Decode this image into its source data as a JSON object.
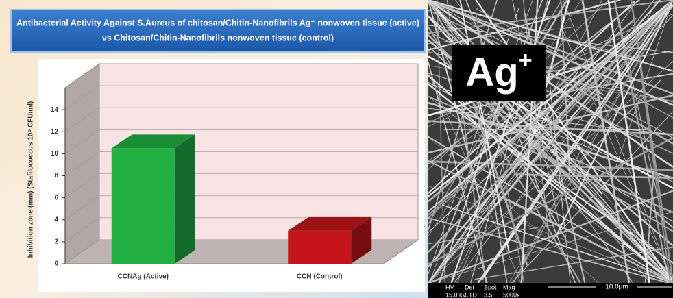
{
  "chart_data": {
    "type": "bar3d",
    "title": "Antibacterial Activity Against S.Aureus of chitosan/Chitin-Nanofibrils Ag⁺ nonwoven tissue (active)",
    "subtitle": "vs Chitosan/Chitin-Nanofibrils nonwoven tissue (control)",
    "y_label": "Inhibition zone (mm) (Stafilococcus 10⁵ CFU/ml)",
    "categories": [
      "CCNAg (Active)",
      "CCN (Control)"
    ],
    "values": [
      10.5,
      3
    ],
    "colors": [
      "#22b043",
      "#c4161c"
    ],
    "ylim": [
      0,
      16
    ],
    "yticks": [
      0,
      2,
      4,
      6,
      8,
      10,
      12,
      14
    ],
    "grid": true
  },
  "sem_image": {
    "label": "Ag",
    "label_superscript": "+",
    "scale_bar": "10.0µm",
    "info_headers": [
      "HV",
      "Det",
      "Spot",
      "Mag"
    ],
    "info_values": [
      "15.0 kV",
      "ETD",
      "3.5",
      "5000x"
    ]
  }
}
